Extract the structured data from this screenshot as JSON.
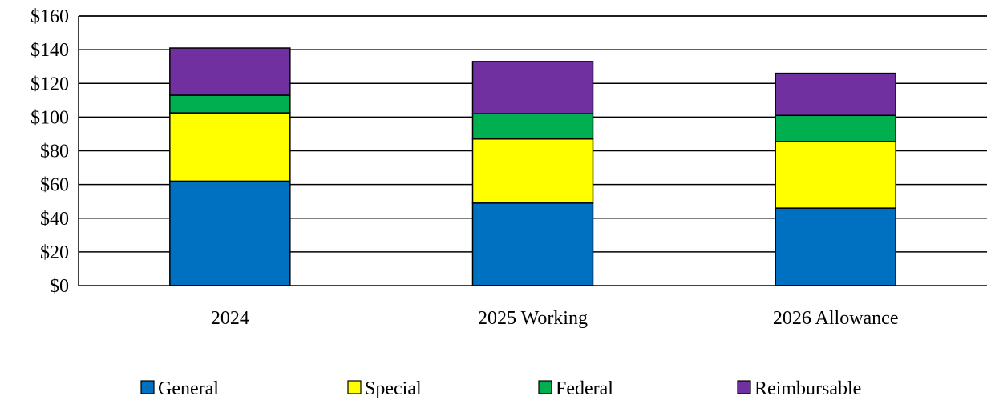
{
  "chart_data": {
    "type": "bar",
    "stacked": true,
    "categories": [
      "2024",
      "2025 Working",
      "2026 Allowance"
    ],
    "series": [
      {
        "name": "General",
        "color": "#0070C0",
        "values": [
          62,
          49,
          46
        ]
      },
      {
        "name": "Special",
        "color": "#FFFF00",
        "values": [
          40.5,
          38,
          39.5
        ]
      },
      {
        "name": "Federal",
        "color": "#00B050",
        "values": [
          10.5,
          15,
          15.5
        ]
      },
      {
        "name": "Reimbursable",
        "color": "#7030A0",
        "values": [
          28,
          31,
          25
        ]
      }
    ],
    "ylim": [
      0,
      160
    ],
    "yticks": [
      0,
      20,
      40,
      60,
      80,
      100,
      120,
      140,
      160
    ],
    "ytick_labels": [
      "$0",
      "$20",
      "$40",
      "$60",
      "$80",
      "$100",
      "$120",
      "$140",
      "$160"
    ],
    "grid": true,
    "legend_position": "bottom"
  }
}
